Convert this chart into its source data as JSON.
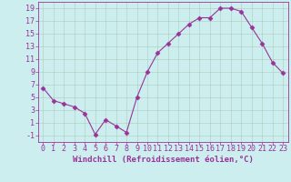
{
  "x": [
    0,
    1,
    2,
    3,
    4,
    5,
    6,
    7,
    8,
    9,
    10,
    11,
    12,
    13,
    14,
    15,
    16,
    17,
    18,
    19,
    20,
    21,
    22,
    23
  ],
  "y": [
    6.5,
    4.5,
    4.0,
    3.5,
    2.5,
    -0.8,
    1.5,
    0.5,
    -0.5,
    5.0,
    9.0,
    12.0,
    13.5,
    15.0,
    16.5,
    17.5,
    17.5,
    19.0,
    19.0,
    18.5,
    16.0,
    13.5,
    10.5,
    8.8
  ],
  "xlabel": "Windchill (Refroidissement éolien,°C)",
  "xlim": [
    -0.5,
    23.5
  ],
  "ylim": [
    -2,
    20
  ],
  "yticks": [
    -1,
    1,
    3,
    5,
    7,
    9,
    11,
    13,
    15,
    17,
    19
  ],
  "xticks": [
    0,
    1,
    2,
    3,
    4,
    5,
    6,
    7,
    8,
    9,
    10,
    11,
    12,
    13,
    14,
    15,
    16,
    17,
    18,
    19,
    20,
    21,
    22,
    23
  ],
  "line_color": "#993399",
  "marker": "D",
  "marker_size": 2.5,
  "bg_color": "#cceeee",
  "grid_color": "#aaccbb",
  "spine_color": "#993399",
  "tick_color": "#993399",
  "label_color": "#993399",
  "font_size_xlabel": 6.5,
  "font_size_ticks": 6.0
}
